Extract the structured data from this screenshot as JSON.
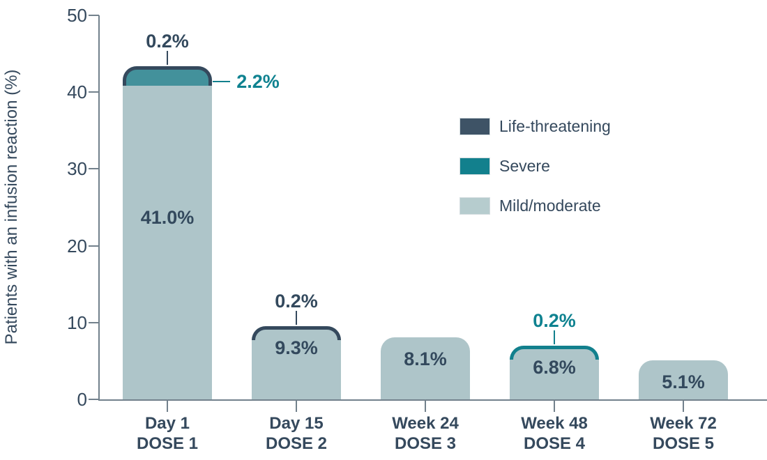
{
  "chart_data": {
    "type": "bar",
    "subtype": "stacked-vertical",
    "title": "",
    "ylabel": "Patients with an infusion reaction (%)",
    "xlabel": "",
    "ylim": [
      0,
      50
    ],
    "yticks": [
      0,
      10,
      20,
      30,
      40,
      50
    ],
    "grid": "off",
    "legend_position": "upper-right-inside",
    "legend": [
      {
        "id": "life_threatening",
        "label": "Life-threatening",
        "color": "#3e5366"
      },
      {
        "id": "severe",
        "label": "Severe",
        "color": "#12808d"
      },
      {
        "id": "mild_moderate",
        "label": "Mild/moderate",
        "color": "#b6ccce"
      }
    ],
    "categories": [
      {
        "line1": "Day 1",
        "line2": "DOSE 1"
      },
      {
        "line1": "Day 15",
        "line2": "DOSE 2"
      },
      {
        "line1": "Week 24",
        "line2": "DOSE 3"
      },
      {
        "line1": "Week 48",
        "line2": "DOSE 4"
      },
      {
        "line1": "Week 72",
        "line2": "DOSE 5"
      }
    ],
    "bars": [
      {
        "category": "Day 1 DOSE 1",
        "segments": [
          {
            "name": "mild_moderate",
            "value": 41.0,
            "label": "41.0%",
            "placement": "inside"
          },
          {
            "name": "severe",
            "value": 2.2,
            "label": "2.2%",
            "placement": "right"
          },
          {
            "name": "life_threatening",
            "value": 0.2,
            "label": "0.2%",
            "placement": "top"
          }
        ]
      },
      {
        "category": "Day 15 DOSE 2",
        "segments": [
          {
            "name": "mild_moderate",
            "value": 9.3,
            "label": "9.3%",
            "placement": "inside"
          },
          {
            "name": "life_threatening",
            "value": 0.2,
            "label": "0.2%",
            "placement": "top"
          }
        ]
      },
      {
        "category": "Week 24 DOSE 3",
        "segments": [
          {
            "name": "mild_moderate",
            "value": 8.1,
            "label": "8.1%",
            "placement": "inside"
          }
        ]
      },
      {
        "category": "Week 48 DOSE 4",
        "segments": [
          {
            "name": "mild_moderate",
            "value": 6.8,
            "label": "6.8%",
            "placement": "inside"
          },
          {
            "name": "severe",
            "value": 0.2,
            "label": "0.2%",
            "placement": "top"
          }
        ]
      },
      {
        "category": "Week 72 DOSE 5",
        "segments": [
          {
            "name": "mild_moderate",
            "value": 5.1,
            "label": "5.1%",
            "placement": "inside"
          }
        ]
      }
    ],
    "colors": {
      "navy_stroke": "#35495d",
      "navy_text": "#33495d",
      "teal_stroke": "#12808d",
      "teal_text": "#0f8290",
      "severe_band_fill": "#43919b",
      "mild_fill": "#aec5c9",
      "axis": "#72818c",
      "background": "#ffffff"
    }
  }
}
